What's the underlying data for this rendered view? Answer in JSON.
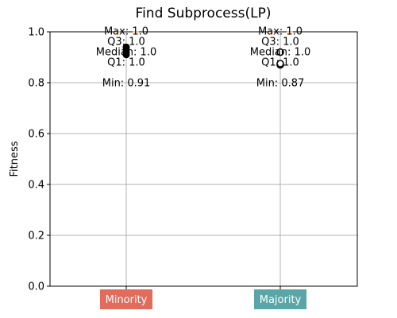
{
  "chart_data": {
    "type": "box",
    "title": "Find Subprocess(LP)",
    "xlabel": "",
    "ylabel": "Fitness",
    "ylim": [
      0.0,
      1.0
    ],
    "yticks": [
      "0.0",
      "0.2",
      "0.4",
      "0.6",
      "0.8",
      "1.0"
    ],
    "grid": true,
    "categories": [
      {
        "name": "Minority",
        "color": "#e36b5c",
        "stats": {
          "min": 0.91,
          "q1": 1.0,
          "median": 1.0,
          "q3": 1.0,
          "max": 1.0
        },
        "outliers": [
          0.91,
          0.92,
          0.93,
          0.94
        ],
        "outlier_style": "filled",
        "labels": {
          "max": "Max: 1.0",
          "q3": "Q3: 1.0",
          "median": "Median: 1.0",
          "q1": "Q1: 1.0",
          "min": "Min: 0.91"
        }
      },
      {
        "name": "Majority",
        "color": "#5aa6a6",
        "stats": {
          "min": 0.87,
          "q1": 1.0,
          "median": 1.0,
          "q3": 1.0,
          "max": 1.0
        },
        "outliers": [
          0.87,
          0.875,
          0.92
        ],
        "outlier_style": "hollow",
        "labels": {
          "max": "Max: 1.0",
          "q3": "Q3: 1.0",
          "median": "Median: 1.0",
          "q1": "Q1: 1.0",
          "min": "Min: 0.87"
        }
      }
    ]
  }
}
